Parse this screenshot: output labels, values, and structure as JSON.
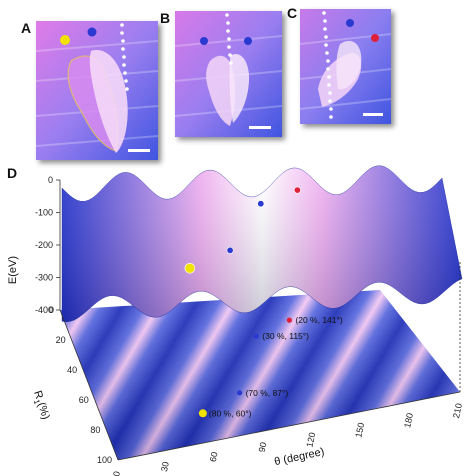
{
  "panels": {
    "a": "A",
    "b": "B",
    "c": "C",
    "d": "D"
  },
  "colors": {
    "surface_blue": "#2233cc",
    "surface_pink": "#f0b0f0",
    "photo_blue": "#4a60e8",
    "photo_pink": "#e888e8",
    "marker_yellow": "#f2e200",
    "marker_blue": "#2a3ad0",
    "marker_red": "#e0203a"
  },
  "chart_data": {
    "type": "surface",
    "zlabel": "E(eV)",
    "ylabel_main": "R",
    "ylabel_sub": "1",
    "ylabel_unit": "(%)",
    "xlabel": "θ (degree)",
    "z_ticks": [
      "0",
      "-100",
      "-200",
      "-300",
      "-400"
    ],
    "y_ticks": [
      "0",
      "20",
      "40",
      "60",
      "80",
      "100"
    ],
    "x_ticks": [
      "0",
      "30",
      "60",
      "90",
      "120",
      "150",
      "180",
      "210"
    ],
    "xlim": [
      0,
      210
    ],
    "ylim": [
      0,
      100
    ],
    "zlim": [
      -400,
      0
    ],
    "points": [
      {
        "label": "(80 %, 60°)",
        "r": 80,
        "theta": 60,
        "color": "yellow"
      },
      {
        "label": "(70 %, 87°)",
        "r": 70,
        "theta": 87,
        "color": "blue"
      },
      {
        "label": "(30 %, 115°)",
        "r": 30,
        "theta": 115,
        "color": "blue"
      },
      {
        "label": "(20 %, 141°)",
        "r": 20,
        "theta": 141,
        "color": "red"
      }
    ]
  }
}
